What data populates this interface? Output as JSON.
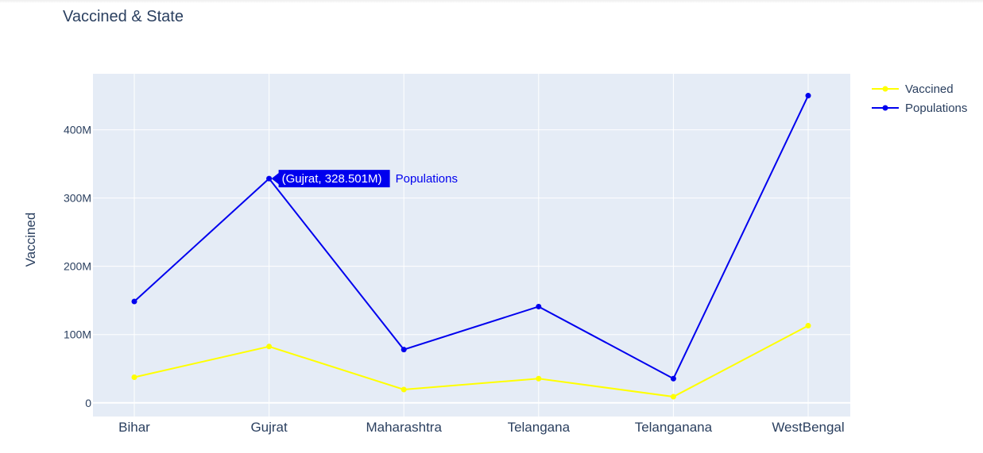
{
  "chart_data": {
    "type": "line",
    "title": "Vaccined & State",
    "xlabel": "",
    "ylabel": "Vaccined",
    "categories": [
      "Bihar",
      "Gujrat",
      "Maharashtra",
      "Telangana",
      "Telanganana",
      "WestBengal"
    ],
    "series": [
      {
        "name": "Vaccined",
        "color": "#ffff00",
        "values": [
          37.5,
          82.5,
          19.5,
          35.5,
          9,
          113
        ]
      },
      {
        "name": "Populations",
        "color": "#0000ee",
        "values": [
          148.5,
          328.501,
          78,
          141,
          35.5,
          450
        ]
      }
    ],
    "y_ticks": [
      0,
      100,
      200,
      300,
      400
    ],
    "y_tick_labels": [
      "0",
      "100M",
      "200M",
      "300M",
      "400M"
    ],
    "ylim": [
      -20,
      482
    ],
    "grid": true,
    "legend_position": "top-right",
    "hover": {
      "label": "(Gujrat, 328.501M)",
      "series": "Populations",
      "category": "Gujrat",
      "value": 328.501
    },
    "background": "#e5ecf6"
  }
}
